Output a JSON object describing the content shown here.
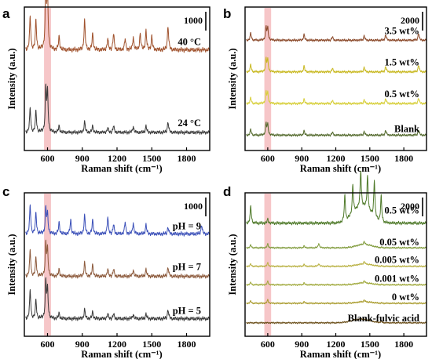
{
  "colors": {
    "band": "#f3b3b6",
    "a_40C": "#a0522d",
    "a_24C": "#3a3a3a",
    "b_35": "#8b4a2b",
    "b_15": "#c8b820",
    "b_05": "#d7cf3a",
    "b_blank": "#556b2f",
    "c_9": "#3a4fb8",
    "c_7": "#8c5a3c",
    "c_5": "#3a3a3a",
    "d_05": "#4f7a2a",
    "d_005": "#7f9a3a",
    "d_0005": "#b8b040",
    "d_0001": "#9fa83a",
    "d_0": "#a89a2a",
    "d_fa": "#6b4f1a"
  },
  "chart_data": [
    {
      "panel": "a",
      "type": "line",
      "xlabel": "Raman shift (cm⁻¹)",
      "ylabel": "Intensity (a.u.)",
      "xlim": [
        400,
        2000
      ],
      "xticks": [
        "600",
        "900",
        "1200",
        "1500",
        "1800"
      ],
      "highlight_band": [
        570,
        630
      ],
      "scale_bar": "1000",
      "series": [
        {
          "name": "40 °C",
          "color_key": "a_40C",
          "offset": 3.2,
          "amp": 1.0,
          "peaks": [
            [
              450,
              60
            ],
            [
              500,
              55
            ],
            [
              585,
              120
            ],
            [
              600,
              100
            ],
            [
              700,
              25
            ],
            [
              920,
              55
            ],
            [
              990,
              30
            ],
            [
              1120,
              20
            ],
            [
              1170,
              30
            ],
            [
              1270,
              20
            ],
            [
              1340,
              25
            ],
            [
              1400,
              30
            ],
            [
              1450,
              35
            ],
            [
              1500,
              25
            ],
            [
              1640,
              45
            ]
          ]
        },
        {
          "name": "24 °C",
          "color_key": "a_24C",
          "offset": 0.4,
          "amp": 0.8,
          "peaks": [
            [
              450,
              55
            ],
            [
              500,
              50
            ],
            [
              585,
              100
            ],
            [
              600,
              90
            ],
            [
              700,
              15
            ],
            [
              920,
              25
            ],
            [
              990,
              15
            ],
            [
              1120,
              10
            ],
            [
              1170,
              15
            ],
            [
              1340,
              15
            ],
            [
              1450,
              15
            ],
            [
              1640,
              25
            ]
          ]
        }
      ]
    },
    {
      "panel": "b",
      "type": "line",
      "xlabel": "Raman shift (cm⁻¹)",
      "ylabel": "Intensity (a.u.)",
      "xlim": [
        400,
        2000
      ],
      "xticks": [
        "600",
        "900",
        "1200",
        "1500",
        "1800"
      ],
      "highlight_band": [
        570,
        630
      ],
      "scale_bar": "2000",
      "series": [
        {
          "name": "3.5 wt%",
          "color_key": "b_35",
          "offset": 4.6,
          "amp": 0.7,
          "peaks": [
            [
              450,
              25
            ],
            [
              585,
              45
            ],
            [
              600,
              40
            ],
            [
              920,
              20
            ],
            [
              1170,
              12
            ],
            [
              1450,
              15
            ],
            [
              1640,
              20
            ],
            [
              1930,
              25
            ]
          ]
        },
        {
          "name": "1.5 wt%",
          "color_key": "b_15",
          "offset": 3.2,
          "amp": 0.7,
          "peaks": [
            [
              450,
              25
            ],
            [
              585,
              45
            ],
            [
              600,
              40
            ],
            [
              920,
              20
            ],
            [
              1170,
              12
            ],
            [
              1450,
              15
            ],
            [
              1640,
              20
            ],
            [
              1930,
              25
            ]
          ]
        },
        {
          "name": "0.5 wt%",
          "color_key": "b_05",
          "offset": 1.8,
          "amp": 0.7,
          "peaks": [
            [
              450,
              20
            ],
            [
              585,
              40
            ],
            [
              600,
              35
            ],
            [
              920,
              15
            ],
            [
              1170,
              10
            ],
            [
              1450,
              12
            ],
            [
              1640,
              18
            ],
            [
              1930,
              20
            ]
          ]
        },
        {
          "name": "Blank",
          "color_key": "b_blank",
          "offset": 0.4,
          "amp": 0.7,
          "peaks": [
            [
              450,
              20
            ],
            [
              585,
              40
            ],
            [
              600,
              35
            ],
            [
              920,
              15
            ],
            [
              1170,
              10
            ],
            [
              1450,
              12
            ],
            [
              1640,
              18
            ],
            [
              1930,
              20
            ]
          ]
        }
      ]
    },
    {
      "panel": "c",
      "type": "line",
      "xlabel": "Raman shift (cm⁻¹)",
      "ylabel": "Intensity (a.u.)",
      "xlim": [
        400,
        2000
      ],
      "xticks": [
        "600",
        "900",
        "1200",
        "1500",
        "1800"
      ],
      "highlight_band": [
        570,
        630
      ],
      "scale_bar": "1000",
      "series": [
        {
          "name": "pH = 9",
          "color_key": "c_9",
          "offset": 3.4,
          "amp": 0.9,
          "peaks": [
            [
              450,
              60
            ],
            [
              500,
              45
            ],
            [
              585,
              55
            ],
            [
              600,
              40
            ],
            [
              700,
              25
            ],
            [
              800,
              30
            ],
            [
              920,
              40
            ],
            [
              990,
              30
            ],
            [
              1120,
              35
            ],
            [
              1170,
              20
            ],
            [
              1270,
              25
            ],
            [
              1340,
              25
            ],
            [
              1450,
              20
            ],
            [
              1640,
              15
            ],
            [
              1930,
              20
            ]
          ]
        },
        {
          "name": "pH = 7",
          "color_key": "c_7",
          "offset": 1.9,
          "amp": 0.9,
          "peaks": [
            [
              450,
              55
            ],
            [
              500,
              40
            ],
            [
              585,
              70
            ],
            [
              600,
              55
            ],
            [
              700,
              15
            ],
            [
              920,
              30
            ],
            [
              990,
              25
            ],
            [
              1120,
              15
            ],
            [
              1170,
              15
            ],
            [
              1340,
              15
            ],
            [
              1450,
              15
            ],
            [
              1640,
              20
            ]
          ]
        },
        {
          "name": "pH = 5",
          "color_key": "c_5",
          "offset": 0.4,
          "amp": 0.9,
          "peaks": [
            [
              450,
              60
            ],
            [
              500,
              40
            ],
            [
              585,
              80
            ],
            [
              600,
              60
            ],
            [
              700,
              12
            ],
            [
              920,
              20
            ],
            [
              990,
              15
            ],
            [
              1120,
              10
            ],
            [
              1170,
              10
            ],
            [
              1340,
              10
            ],
            [
              1450,
              10
            ],
            [
              1640,
              20
            ]
          ]
        }
      ]
    },
    {
      "panel": "d",
      "type": "line",
      "xlabel": "Raman shift (cm⁻¹)",
      "ylabel": "Intensity (a.u.)",
      "xlim": [
        400,
        2000
      ],
      "xticks": [
        "600",
        "900",
        "1200",
        "1500",
        "1800"
      ],
      "highlight_band": [
        570,
        630
      ],
      "scale_bar": "2000",
      "series": [
        {
          "name": "0.5 wt%",
          "color_key": "d_05",
          "offset": 5.2,
          "amp": 1.0,
          "peaks": [
            [
              450,
              45
            ],
            [
              600,
              10
            ],
            [
              1280,
              70
            ],
            [
              1350,
              80
            ],
            [
              1420,
              95
            ],
            [
              1480,
              90
            ],
            [
              1540,
              100
            ],
            [
              1600,
              70
            ]
          ],
          "hump": [
            1430,
            160,
            45
          ]
        },
        {
          "name": "0.05 wt%",
          "color_key": "d_005",
          "offset": 4.0,
          "amp": 0.5,
          "peaks": [
            [
              450,
              15
            ],
            [
              600,
              20
            ],
            [
              920,
              10
            ],
            [
              1050,
              25
            ],
            [
              1450,
              15
            ]
          ],
          "hump": [
            1450,
            150,
            18
          ]
        },
        {
          "name": "0.005 wt%",
          "color_key": "d_0005",
          "offset": 3.1,
          "amp": 0.5,
          "peaks": [
            [
              450,
              12
            ],
            [
              600,
              18
            ],
            [
              920,
              10
            ],
            [
              1050,
              15
            ],
            [
              1450,
              12
            ]
          ],
          "hump": [
            1450,
            150,
            12
          ]
        },
        {
          "name": "0.001 wt%",
          "color_key": "d_0001",
          "offset": 2.2,
          "amp": 0.5,
          "peaks": [
            [
              450,
              12
            ],
            [
              600,
              18
            ],
            [
              920,
              10
            ],
            [
              1450,
              10
            ]
          ],
          "hump": [
            1450,
            150,
            10
          ]
        },
        {
          "name": "0 wt%",
          "color_key": "d_0",
          "offset": 1.3,
          "amp": 0.5,
          "peaks": [
            [
              450,
              12
            ],
            [
              600,
              18
            ],
            [
              920,
              8
            ],
            [
              1450,
              8
            ]
          ],
          "hump": [
            1450,
            150,
            8
          ]
        },
        {
          "name": "Blank-fulvic acid",
          "color_key": "d_fa",
          "offset": 0.35,
          "amp": 0.5,
          "peaks": [
            [
              1600,
              8
            ]
          ],
          "hump": [
            1420,
            170,
            20
          ]
        }
      ]
    }
  ]
}
